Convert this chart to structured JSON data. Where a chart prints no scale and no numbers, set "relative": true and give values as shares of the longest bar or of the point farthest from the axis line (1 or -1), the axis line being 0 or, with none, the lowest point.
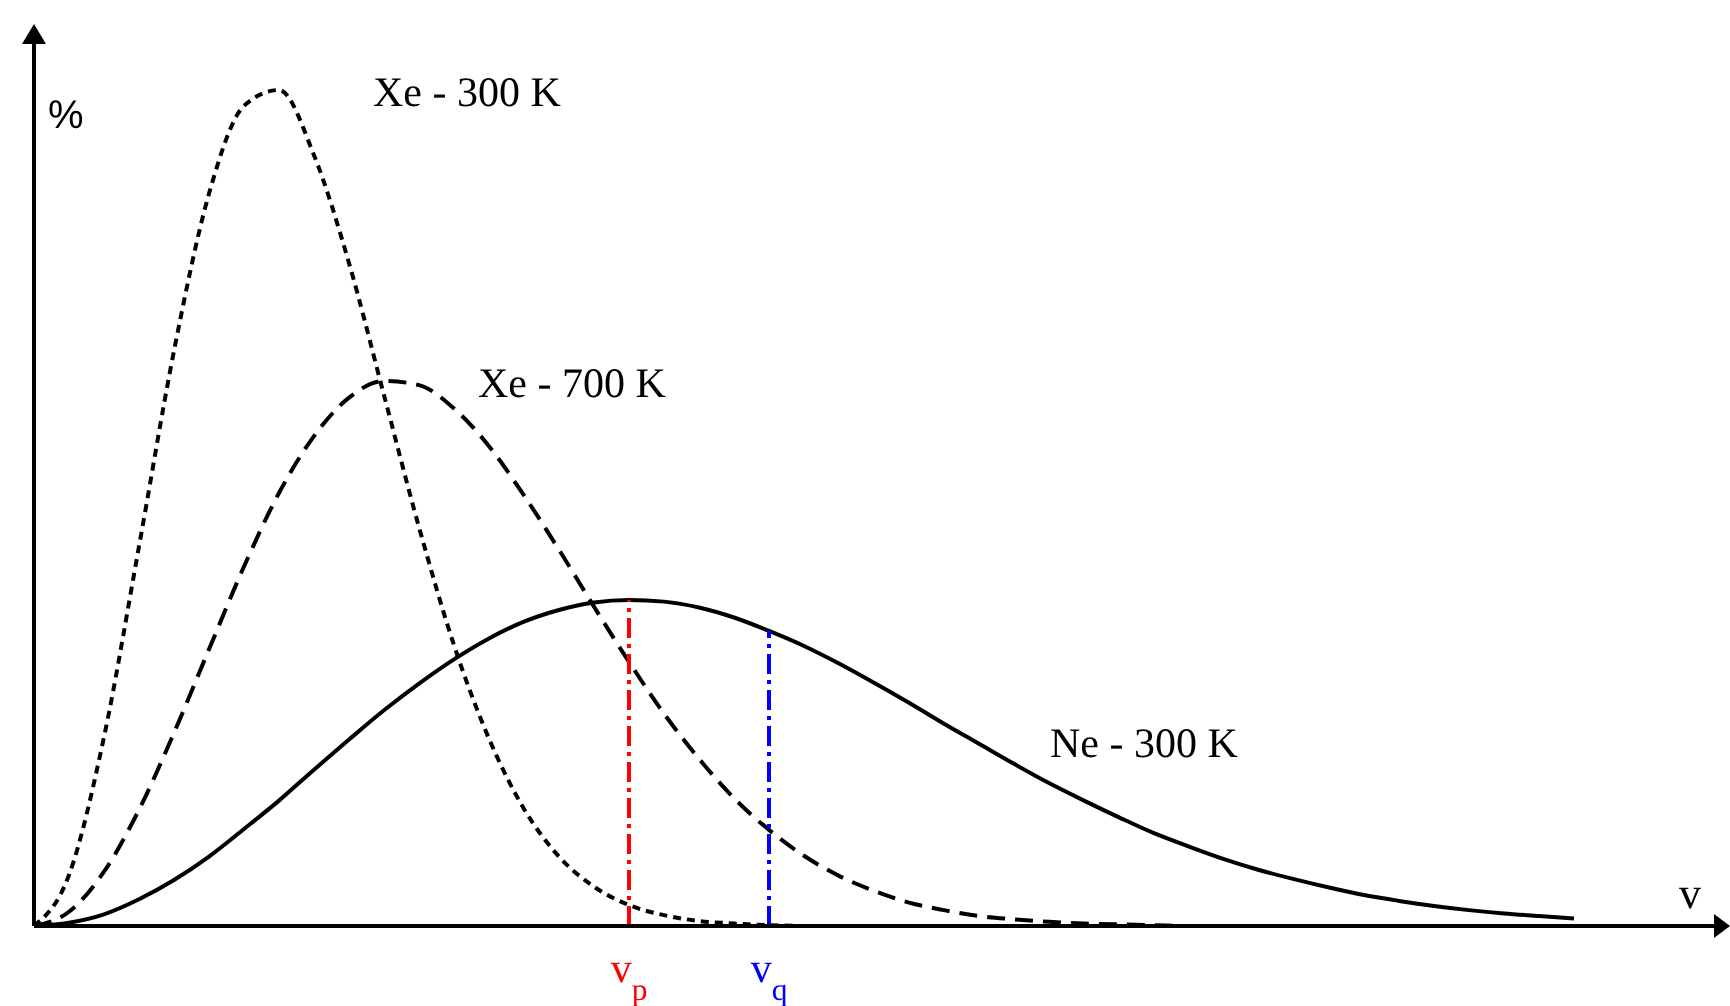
{
  "chart_data": {
    "type": "line",
    "relative": true,
    "xlabel": "v",
    "ylabel": "%",
    "categories": [
      null,
      null,
      null,
      null,
      null,
      null,
      null,
      null,
      null,
      null,
      null,
      null,
      null,
      null,
      null,
      null,
      null,
      "v$_{p}$",
      null,
      null,
      null,
      "v$_{q}$",
      null,
      null,
      null,
      null,
      null,
      null,
      null,
      null,
      null,
      null,
      null,
      null,
      null,
      null,
      null,
      null,
      null,
      null,
      null,
      null,
      null,
      null,
      null,
      null,
      null,
      null,
      null
    ],
    "series": [
      {
        "name": "Xe - 300 K",
        "color": "#000000",
        "line_style": "dotted",
        "values": [
          0,
          0.061,
          0.226,
          0.454,
          0.688,
          0.876,
          0.981,
          1,
          0.922,
          0.793,
          0.635,
          0.477,
          0.336,
          0.224,
          0.14,
          0.083,
          0.047,
          0.025,
          0.013,
          0.006,
          0.003,
          0.001,
          0,
          null,
          null,
          null,
          null,
          null,
          null,
          null,
          null,
          null,
          null,
          null,
          null,
          null,
          null,
          null,
          null,
          null,
          null,
          null,
          null,
          null,
          null,
          null,
          null,
          null,
          null
        ]
      },
      {
        "name": "Xe - 700 K",
        "color": "#000000",
        "line_style": "dashed",
        "values": [
          0,
          0.017,
          0.065,
          0.139,
          0.231,
          0.331,
          0.43,
          0.518,
          0.586,
          0.632,
          0.652,
          0.647,
          0.619,
          0.574,
          0.515,
          0.45,
          0.382,
          0.316,
          0.254,
          0.2,
          0.153,
          0.115,
          0.084,
          0.06,
          0.042,
          0.028,
          0.019,
          0.012,
          0.008,
          0.005,
          0.003,
          0.002,
          0.001,
          0,
          0,
          0,
          0,
          0,
          0,
          0,
          0,
          0,
          0,
          0,
          0,
          0,
          0,
          0,
          0
        ]
      },
      {
        "name": "Ne - 300 K",
        "color": "#000000",
        "line_style": "solid",
        "values": [
          0,
          0.004,
          0.014,
          0.032,
          0.055,
          0.083,
          0.116,
          0.15,
          0.187,
          0.223,
          0.258,
          0.29,
          0.319,
          0.344,
          0.364,
          0.378,
          0.387,
          0.39,
          0.388,
          0.381,
          0.369,
          0.353,
          0.335,
          0.314,
          0.291,
          0.267,
          0.242,
          0.218,
          0.194,
          0.171,
          0.15,
          0.13,
          0.111,
          0.095,
          0.08,
          0.067,
          0.056,
          0.046,
          0.037,
          0.03,
          0.024,
          0.019,
          0.015,
          0.012,
          0.009,
          null,
          null,
          null,
          null
        ]
      }
    ],
    "ref_lines": [
      {
        "axis": "x",
        "value": "v$_{p}$",
        "color": "#ff0000",
        "line_style": "dashed"
      },
      {
        "axis": "x",
        "value": "v$_{q}$",
        "color": "#0000ff",
        "line_style": "dashed"
      }
    ]
  }
}
